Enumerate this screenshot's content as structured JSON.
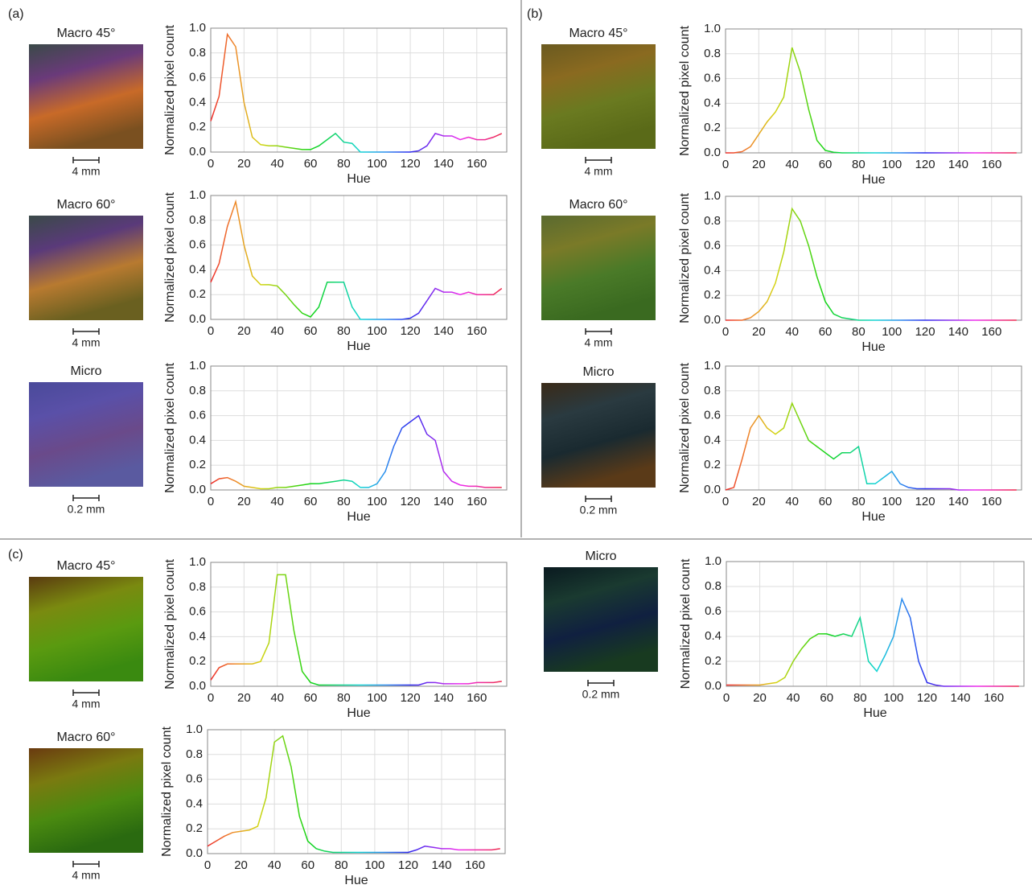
{
  "panels": [
    "(a)",
    "(b)",
    "(c)"
  ],
  "images": [
    {
      "caption": "Macro 45°",
      "scale": "4 mm"
    },
    {
      "caption": "Macro 60°",
      "scale": "4 mm"
    },
    {
      "caption": "Micro",
      "scale": "0.2 mm"
    },
    {
      "caption": "Macro 45°",
      "scale": "4 mm"
    },
    {
      "caption": "Macro 60°",
      "scale": "4 mm"
    },
    {
      "caption": "Micro",
      "scale": "0.2 mm"
    },
    {
      "caption": "Macro 45°",
      "scale": "4 mm"
    },
    {
      "caption": "Macro 60°",
      "scale": "4 mm"
    },
    {
      "caption": "Micro",
      "scale": "0.2 mm"
    }
  ],
  "chart_data": [
    {
      "type": "line",
      "xlabel": "Hue",
      "ylabel": "Normalized pixel count",
      "xlim": [
        0,
        178
      ],
      "ylim": [
        0,
        1
      ],
      "grid": true,
      "xticks": [
        0,
        20,
        40,
        60,
        80,
        100,
        120,
        140,
        160
      ],
      "yticks": [
        {
          "value": 0,
          "label": "0.0"
        },
        0.2,
        0.4,
        0.6,
        0.8,
        {
          "value": 1,
          "label": "1.0"
        }
      ],
      "x": [
        0,
        5,
        10,
        15,
        20,
        25,
        30,
        35,
        40,
        45,
        50,
        55,
        60,
        65,
        70,
        75,
        80,
        85,
        90,
        95,
        100,
        105,
        110,
        115,
        120,
        125,
        130,
        135,
        140,
        145,
        150,
        155,
        160,
        165,
        170,
        175
      ],
      "values": [
        0.25,
        0.45,
        0.95,
        0.85,
        0.4,
        0.12,
        0.06,
        0.05,
        0.05,
        0.04,
        0.03,
        0.02,
        0.02,
        0.05,
        0.1,
        0.15,
        0.08,
        0.07,
        0,
        0,
        0,
        0,
        0,
        0,
        0,
        0.01,
        0.05,
        0.15,
        0.13,
        0.13,
        0.1,
        0.12,
        0.1,
        0.1,
        0.12,
        0.15
      ]
    },
    {
      "type": "line",
      "xlabel": "Hue",
      "ylabel": "Normalized pixel count",
      "xlim": [
        0,
        178
      ],
      "ylim": [
        0,
        1
      ],
      "grid": true,
      "xticks": [
        0,
        20,
        40,
        60,
        80,
        100,
        120,
        140,
        160
      ],
      "yticks": [
        {
          "value": 0,
          "label": "0.0"
        },
        0.2,
        0.4,
        0.6,
        0.8,
        {
          "value": 1,
          "label": "1.0"
        }
      ],
      "x": [
        0,
        5,
        10,
        15,
        20,
        25,
        30,
        35,
        40,
        45,
        50,
        55,
        60,
        65,
        70,
        75,
        80,
        85,
        90,
        95,
        100,
        105,
        110,
        115,
        120,
        125,
        130,
        135,
        140,
        145,
        150,
        155,
        160,
        165,
        170,
        175
      ],
      "values": [
        0.3,
        0.45,
        0.75,
        0.95,
        0.6,
        0.35,
        0.28,
        0.28,
        0.27,
        0.2,
        0.12,
        0.05,
        0.02,
        0.1,
        0.3,
        0.3,
        0.3,
        0.1,
        0,
        0,
        0,
        0,
        0,
        0,
        0.01,
        0.05,
        0.15,
        0.25,
        0.22,
        0.22,
        0.2,
        0.22,
        0.2,
        0.2,
        0.2,
        0.25
      ]
    },
    {
      "type": "line",
      "xlabel": "Hue",
      "ylabel": "Normalized pixel count",
      "xlim": [
        0,
        178
      ],
      "ylim": [
        0,
        1
      ],
      "grid": true,
      "xticks": [
        0,
        20,
        40,
        60,
        80,
        100,
        120,
        140,
        160
      ],
      "yticks": [
        {
          "value": 0,
          "label": "0.0"
        },
        0.2,
        0.4,
        0.6,
        0.8,
        {
          "value": 1,
          "label": "1.0"
        }
      ],
      "x": [
        0,
        5,
        10,
        15,
        20,
        25,
        30,
        35,
        40,
        45,
        50,
        55,
        60,
        65,
        70,
        75,
        80,
        85,
        90,
        95,
        100,
        105,
        110,
        115,
        120,
        125,
        130,
        135,
        140,
        145,
        150,
        155,
        160,
        165,
        170,
        175
      ],
      "values": [
        0.05,
        0.09,
        0.1,
        0.07,
        0.03,
        0.02,
        0.01,
        0.01,
        0.02,
        0.02,
        0.03,
        0.04,
        0.05,
        0.05,
        0.06,
        0.07,
        0.08,
        0.07,
        0.02,
        0.02,
        0.05,
        0.15,
        0.35,
        0.5,
        0.55,
        0.6,
        0.45,
        0.4,
        0.15,
        0.07,
        0.04,
        0.03,
        0.03,
        0.02,
        0.02,
        0.02
      ]
    },
    {
      "type": "line",
      "xlabel": "Hue",
      "ylabel": "Normalized pixel count",
      "xlim": [
        0,
        178
      ],
      "ylim": [
        0,
        1
      ],
      "grid": true,
      "xticks": [
        0,
        20,
        40,
        60,
        80,
        100,
        120,
        140,
        160
      ],
      "yticks": [
        {
          "value": 0,
          "label": "0.0"
        },
        0.2,
        0.4,
        0.6,
        0.8,
        {
          "value": 1,
          "label": "1.0"
        }
      ],
      "x": [
        0,
        5,
        10,
        15,
        20,
        25,
        30,
        35,
        40,
        45,
        50,
        55,
        60,
        65,
        70,
        75,
        80,
        85,
        90,
        95,
        100,
        105,
        110,
        115,
        120,
        125,
        130,
        135,
        140,
        145,
        150,
        155,
        160,
        165,
        170,
        175
      ],
      "values": [
        0,
        0,
        0.01,
        0.05,
        0.15,
        0.25,
        0.33,
        0.45,
        0.85,
        0.65,
        0.35,
        0.1,
        0.02,
        0.005,
        0,
        0,
        0,
        0,
        0,
        0,
        0,
        0,
        0,
        0,
        0,
        0,
        0,
        0,
        0,
        0,
        0,
        0,
        0,
        0,
        0,
        0
      ]
    },
    {
      "type": "line",
      "xlabel": "Hue",
      "ylabel": "Normalized pixel count",
      "xlim": [
        0,
        178
      ],
      "ylim": [
        0,
        1
      ],
      "grid": true,
      "xticks": [
        0,
        20,
        40,
        60,
        80,
        100,
        120,
        140,
        160
      ],
      "yticks": [
        {
          "value": 0,
          "label": "0.0"
        },
        0.2,
        0.4,
        0.6,
        0.8,
        {
          "value": 1,
          "label": "1.0"
        }
      ],
      "x": [
        0,
        5,
        10,
        15,
        20,
        25,
        30,
        35,
        40,
        45,
        50,
        55,
        60,
        65,
        70,
        75,
        80,
        85,
        90,
        95,
        100,
        105,
        110,
        115,
        120,
        125,
        130,
        135,
        140,
        145,
        150,
        155,
        160,
        165,
        170,
        175
      ],
      "values": [
        0,
        0,
        0,
        0.02,
        0.07,
        0.15,
        0.3,
        0.55,
        0.9,
        0.8,
        0.6,
        0.35,
        0.15,
        0.05,
        0.02,
        0.01,
        0,
        0,
        0,
        0,
        0,
        0,
        0,
        0,
        0,
        0,
        0,
        0,
        0,
        0,
        0,
        0,
        0,
        0,
        0,
        0
      ]
    },
    {
      "type": "line",
      "xlabel": "Hue",
      "ylabel": "Normalized pixel count",
      "xlim": [
        0,
        178
      ],
      "ylim": [
        0,
        1
      ],
      "grid": true,
      "xticks": [
        0,
        20,
        40,
        60,
        80,
        100,
        120,
        140,
        160
      ],
      "yticks": [
        {
          "value": 0,
          "label": "0.0"
        },
        0.2,
        0.4,
        0.6,
        0.8,
        {
          "value": 1,
          "label": "1.0"
        }
      ],
      "x": [
        0,
        5,
        10,
        15,
        20,
        25,
        30,
        35,
        40,
        45,
        50,
        55,
        60,
        65,
        70,
        75,
        80,
        85,
        90,
        95,
        100,
        105,
        110,
        115,
        120,
        125,
        130,
        135,
        140,
        145,
        150,
        155,
        160,
        165,
        170,
        175
      ],
      "values": [
        0,
        0.02,
        0.25,
        0.5,
        0.6,
        0.5,
        0.45,
        0.5,
        0.7,
        0.55,
        0.4,
        0.35,
        0.3,
        0.25,
        0.3,
        0.3,
        0.35,
        0.05,
        0.05,
        0.1,
        0.15,
        0.05,
        0.02,
        0.01,
        0.01,
        0.01,
        0.01,
        0.01,
        0,
        0,
        0,
        0,
        0,
        0,
        0,
        0
      ]
    },
    {
      "type": "line",
      "xlabel": "Hue",
      "ylabel": "Normalized pixel count",
      "xlim": [
        0,
        178
      ],
      "ylim": [
        0,
        1
      ],
      "grid": true,
      "xticks": [
        0,
        20,
        40,
        60,
        80,
        100,
        120,
        140,
        160
      ],
      "yticks": [
        {
          "value": 0,
          "label": "0.0"
        },
        0.2,
        0.4,
        0.6,
        0.8,
        {
          "value": 1,
          "label": "1.0"
        }
      ],
      "x": [
        0,
        5,
        10,
        15,
        20,
        25,
        30,
        35,
        40,
        45,
        50,
        55,
        60,
        65,
        70,
        75,
        80,
        85,
        90,
        95,
        100,
        105,
        110,
        115,
        120,
        125,
        130,
        135,
        140,
        145,
        150,
        155,
        160,
        165,
        170,
        175
      ],
      "values": [
        0.05,
        0.15,
        0.18,
        0.18,
        0.18,
        0.18,
        0.2,
        0.35,
        0.9,
        0.9,
        0.45,
        0.12,
        0.03,
        0.01,
        0.01,
        0.01,
        0.01,
        0.01,
        0.01,
        0.01,
        0.01,
        0.01,
        0.01,
        0.01,
        0.01,
        0.01,
        0.03,
        0.03,
        0.02,
        0.02,
        0.02,
        0.02,
        0.03,
        0.03,
        0.03,
        0.04
      ]
    },
    {
      "type": "line",
      "xlabel": "Hue",
      "ylabel": "Normalized pixel count",
      "xlim": [
        0,
        178
      ],
      "ylim": [
        0,
        1
      ],
      "grid": true,
      "xticks": [
        0,
        20,
        40,
        60,
        80,
        100,
        120,
        140,
        160
      ],
      "yticks": [
        {
          "value": 0,
          "label": "0.0"
        },
        0.2,
        0.4,
        0.6,
        0.8,
        {
          "value": 1,
          "label": "1.0"
        }
      ],
      "x": [
        0,
        5,
        10,
        15,
        20,
        25,
        30,
        35,
        40,
        45,
        50,
        55,
        60,
        65,
        70,
        75,
        80,
        85,
        90,
        95,
        100,
        105,
        110,
        115,
        120,
        125,
        130,
        135,
        140,
        145,
        150,
        155,
        160,
        165,
        170,
        175
      ],
      "values": [
        0.06,
        0.1,
        0.14,
        0.17,
        0.18,
        0.19,
        0.22,
        0.45,
        0.9,
        0.95,
        0.7,
        0.3,
        0.1,
        0.04,
        0.02,
        0.01,
        0.01,
        0.01,
        0.01,
        0.01,
        0.01,
        0.01,
        0.01,
        0.01,
        0.01,
        0.03,
        0.06,
        0.05,
        0.04,
        0.04,
        0.03,
        0.03,
        0.03,
        0.03,
        0.03,
        0.04
      ]
    },
    {
      "type": "line",
      "xlabel": "Hue",
      "ylabel": "Normalized pixel count",
      "xlim": [
        0,
        178
      ],
      "ylim": [
        0,
        1
      ],
      "grid": true,
      "xticks": [
        0,
        20,
        40,
        60,
        80,
        100,
        120,
        140,
        160
      ],
      "yticks": [
        {
          "value": 0,
          "label": "0.0"
        },
        0.2,
        0.4,
        0.6,
        0.8,
        {
          "value": 1,
          "label": "1.0"
        }
      ],
      "x": [
        0,
        5,
        10,
        15,
        20,
        25,
        30,
        35,
        40,
        45,
        50,
        55,
        60,
        65,
        70,
        75,
        80,
        85,
        90,
        95,
        100,
        105,
        110,
        115,
        120,
        125,
        130,
        135,
        140,
        145,
        150,
        155,
        160,
        165,
        170,
        175
      ],
      "values": [
        0.01,
        0.01,
        0.01,
        0.01,
        0.01,
        0.02,
        0.03,
        0.07,
        0.2,
        0.3,
        0.38,
        0.42,
        0.42,
        0.4,
        0.42,
        0.4,
        0.55,
        0.2,
        0.12,
        0.25,
        0.4,
        0.7,
        0.55,
        0.2,
        0.03,
        0.01,
        0,
        0,
        0,
        0,
        0,
        0,
        0,
        0,
        0,
        0
      ]
    }
  ]
}
